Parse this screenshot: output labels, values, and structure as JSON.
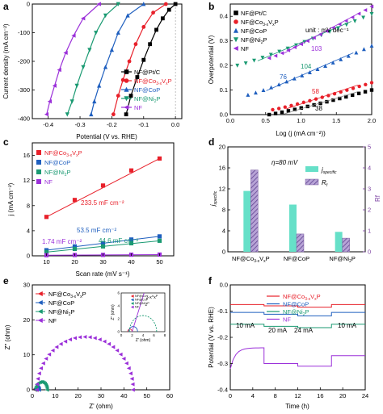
{
  "chart_data": [
    {
      "panel": "a",
      "type": "line",
      "xlabel": "Potential (V vs. RHE)",
      "ylabel": "Current density (mA cm⁻²)",
      "xlim": [
        -0.45,
        0.02
      ],
      "ylim": [
        -400,
        0
      ],
      "xticks": [
        "-0.4",
        "-0.3",
        "-0.2",
        "-0.1",
        "0.0"
      ],
      "yticks": [
        "-400",
        "-300",
        "-200",
        "-100",
        "0"
      ],
      "legend": "bottom-right",
      "series": [
        {
          "name": "NF@Pt/C",
          "color": "#000000",
          "marker": "square",
          "points": [
            [
              0.0,
              0
            ],
            [
              -0.02,
              -20
            ],
            [
              -0.04,
              -50
            ],
            [
              -0.06,
              -90
            ],
            [
              -0.08,
              -140
            ],
            [
              -0.1,
              -195
            ],
            [
              -0.12,
              -255
            ],
            [
              -0.14,
              -320
            ],
            [
              -0.155,
              -385
            ]
          ]
        },
        {
          "name": "NF@Co3-xVxP",
          "color": "#e8202a",
          "marker": "circle",
          "points": [
            [
              -0.03,
              0
            ],
            [
              -0.07,
              -30
            ],
            [
              -0.1,
              -80
            ],
            [
              -0.125,
              -140
            ],
            [
              -0.145,
              -200
            ],
            [
              -0.165,
              -265
            ],
            [
              -0.18,
              -320
            ],
            [
              -0.195,
              -385
            ]
          ]
        },
        {
          "name": "NF@CoP",
          "color": "#1f5fbf",
          "marker": "triangle-up",
          "points": [
            [
              -0.1,
              0
            ],
            [
              -0.15,
              -40
            ],
            [
              -0.18,
              -100
            ],
            [
              -0.2,
              -160
            ],
            [
              -0.22,
              -220
            ],
            [
              -0.24,
              -285
            ],
            [
              -0.255,
              -340
            ],
            [
              -0.265,
              -385
            ]
          ]
        },
        {
          "name": "NF@Ni2P",
          "color": "#1a9a72",
          "marker": "triangle-down",
          "points": [
            [
              -0.18,
              0
            ],
            [
              -0.22,
              -40
            ],
            [
              -0.25,
              -100
            ],
            [
              -0.27,
              -160
            ],
            [
              -0.29,
              -220
            ],
            [
              -0.31,
              -285
            ],
            [
              -0.325,
              -340
            ],
            [
              -0.34,
              -385
            ]
          ]
        },
        {
          "name": "NF",
          "color": "#9b30d9",
          "marker": "triangle-left",
          "points": [
            [
              -0.24,
              0
            ],
            [
              -0.29,
              -50
            ],
            [
              -0.32,
              -110
            ],
            [
              -0.345,
              -170
            ],
            [
              -0.365,
              -230
            ],
            [
              -0.38,
              -285
            ],
            [
              -0.395,
              -340
            ],
            [
              -0.405,
              -385
            ]
          ]
        }
      ]
    },
    {
      "panel": "b",
      "type": "line",
      "xlabel": "Log (j (mA cm⁻²))",
      "ylabel": "Overpotential (V)",
      "xlim": [
        0.0,
        2.0
      ],
      "ylim": [
        0.0,
        0.45
      ],
      "xticks": [
        "0.0",
        "0.5",
        "1.0",
        "1.5",
        "2.0"
      ],
      "yticks": [
        "0.0",
        "0.1",
        "0.2",
        "0.3",
        "0.4"
      ],
      "unit_text": "unit : mV dec⁻¹",
      "legend": "top-left",
      "series": [
        {
          "name": "NF@Pt/C",
          "color": "#000000",
          "marker": "square",
          "x_range": [
            0.55,
            2.0
          ],
          "y_range": [
            0.0,
            0.1
          ],
          "slope_label": "38"
        },
        {
          "name": "NF@Co3-xVxP",
          "color": "#e8202a",
          "marker": "circle",
          "x_range": [
            0.6,
            2.0
          ],
          "y_range": [
            0.02,
            0.13
          ],
          "slope_label": "58"
        },
        {
          "name": "NF@CoP",
          "color": "#1f5fbf",
          "marker": "triangle-up",
          "x_range": [
            0.25,
            2.0
          ],
          "y_range": [
            0.08,
            0.28
          ],
          "slope_label": "76"
        },
        {
          "name": "NF@Ni2P",
          "color": "#1a9a72",
          "marker": "triangle-down",
          "x_range": [
            0.1,
            2.0
          ],
          "y_range": [
            0.2,
            0.41
          ],
          "slope_label": "104"
        },
        {
          "name": "NF",
          "color": "#9b30d9",
          "marker": "triangle-left",
          "x_range": [
            0.55,
            2.0
          ],
          "y_range": [
            0.23,
            0.44
          ],
          "slope_label": "103"
        }
      ]
    },
    {
      "panel": "c",
      "type": "scatter",
      "xlabel": "Scan rate (mV s⁻¹)",
      "ylabel": "j (mA cm⁻²)",
      "xlim": [
        5,
        55
      ],
      "ylim": [
        0,
        18
      ],
      "xticks": [
        "10",
        "20",
        "30",
        "40",
        "50"
      ],
      "yticks": [
        "0",
        "4",
        "8",
        "12",
        "16"
      ],
      "x": [
        10,
        20,
        30,
        40,
        50
      ],
      "legend": "top-left",
      "series": [
        {
          "name": "NF@Co3-xVxP",
          "color": "#e8202a",
          "marker": "square",
          "values": [
            6.2,
            8.9,
            11.2,
            13.6,
            15.5
          ],
          "label": "233.5 mF cm⁻²"
        },
        {
          "name": "NF@CoP",
          "color": "#1f5fbf",
          "marker": "square",
          "values": [
            0.9,
            1.5,
            2.0,
            2.6,
            3.1
          ],
          "label": "53.5 mF cm⁻²"
        },
        {
          "name": "NF@Ni2P",
          "color": "#1a9a72",
          "marker": "square",
          "values": [
            0.6,
            1.1,
            1.5,
            2.0,
            2.4
          ],
          "label": "44.6 mF cm⁻²"
        },
        {
          "name": "NF",
          "color": "#9b30d9",
          "marker": "square",
          "values": [
            0.1,
            0.13,
            0.15,
            0.18,
            0.2
          ],
          "label": "1.74 mF cm⁻²"
        }
      ]
    },
    {
      "panel": "d",
      "type": "bar",
      "eta_text": "η=80 mV",
      "ylabel_left": "j specific",
      "ylabel_right": "Rf",
      "ylim_left": [
        0,
        20
      ],
      "ylim_right": [
        0,
        5
      ],
      "yticks_left": [
        "0",
        "4",
        "8",
        "12",
        "16",
        "20"
      ],
      "yticks_right": [
        "0",
        "1",
        "2",
        "3",
        "4",
        "5"
      ],
      "categories": [
        "NF@Co3-xVxP",
        "NF@CoP",
        "NF@Ni2P"
      ],
      "legend": "top-right",
      "series": [
        {
          "name": "j specific",
          "color": "#66e0c8",
          "axis": "left",
          "values": [
            11.6,
            9.0,
            3.8
          ]
        },
        {
          "name": "Rf",
          "color": "#7a5fa0",
          "axis": "right",
          "values": [
            3.9,
            0.85,
            0.65
          ]
        }
      ]
    },
    {
      "panel": "e",
      "type": "scatter",
      "xlabel": "Z' (ohm)",
      "ylabel": "Z\" (ohm)",
      "xlim": [
        0,
        60
      ],
      "ylim": [
        0,
        30
      ],
      "xticks": [
        "0",
        "10",
        "20",
        "30",
        "40",
        "50",
        "60"
      ],
      "yticks": [
        "0",
        "10",
        "20",
        "30"
      ],
      "inset_xlabel": "Z' (ohm)",
      "inset_ylabel": "Z\" (ohm)",
      "inset_xticks": [
        "0",
        "2",
        "4",
        "6",
        "8"
      ],
      "inset_yticks": [
        "0",
        "2",
        "4",
        "6"
      ],
      "legend": "top-left",
      "series": [
        {
          "name": "NF@Co3-xVxP",
          "color": "#e8202a",
          "marker": "triangle-left",
          "arc": [
            1.2,
            2.0
          ]
        },
        {
          "name": "NF@CoP",
          "color": "#1f5fbf",
          "marker": "triangle-left",
          "arc": [
            1.4,
            3.0
          ]
        },
        {
          "name": "NF@Ni2P",
          "color": "#1a9a72",
          "marker": "triangle-left",
          "arc": [
            1.5,
            6.5
          ]
        },
        {
          "name": "NF",
          "color": "#9b30d9",
          "marker": "triangle-left",
          "arc": [
            2.0,
            44.0
          ]
        }
      ]
    },
    {
      "panel": "f",
      "type": "line",
      "xlabel": "Time (h)",
      "ylabel": "Potential (V vs. RHE)",
      "xlim": [
        0,
        24
      ],
      "ylim": [
        -0.4,
        0.0
      ],
      "xticks": [
        "0",
        "4",
        "8",
        "12",
        "16",
        "20",
        "24"
      ],
      "yticks": [
        "-0.4",
        "-0.3",
        "-0.2",
        "-0.1",
        "0.0"
      ],
      "step_labels": [
        "10 mA",
        "20 mA",
        "24 mA",
        "10 mA"
      ],
      "legend": "top-right",
      "series": [
        {
          "name": "NF@Co3-xVxP",
          "color": "#e8202a",
          "levels": [
            -0.075,
            -0.08,
            -0.085,
            -0.075
          ]
        },
        {
          "name": "NF@CoP",
          "color": "#1f5fbf",
          "levels": [
            -0.105,
            -0.112,
            -0.118,
            -0.105
          ]
        },
        {
          "name": "NF@Ni2P",
          "color": "#1a9a72",
          "levels": [
            -0.15,
            -0.158,
            -0.163,
            -0.15
          ]
        },
        {
          "name": "NF",
          "color": "#9b30d9",
          "levels": [
            -0.26,
            -0.3,
            -0.31,
            -0.27
          ]
        }
      ]
    }
  ]
}
